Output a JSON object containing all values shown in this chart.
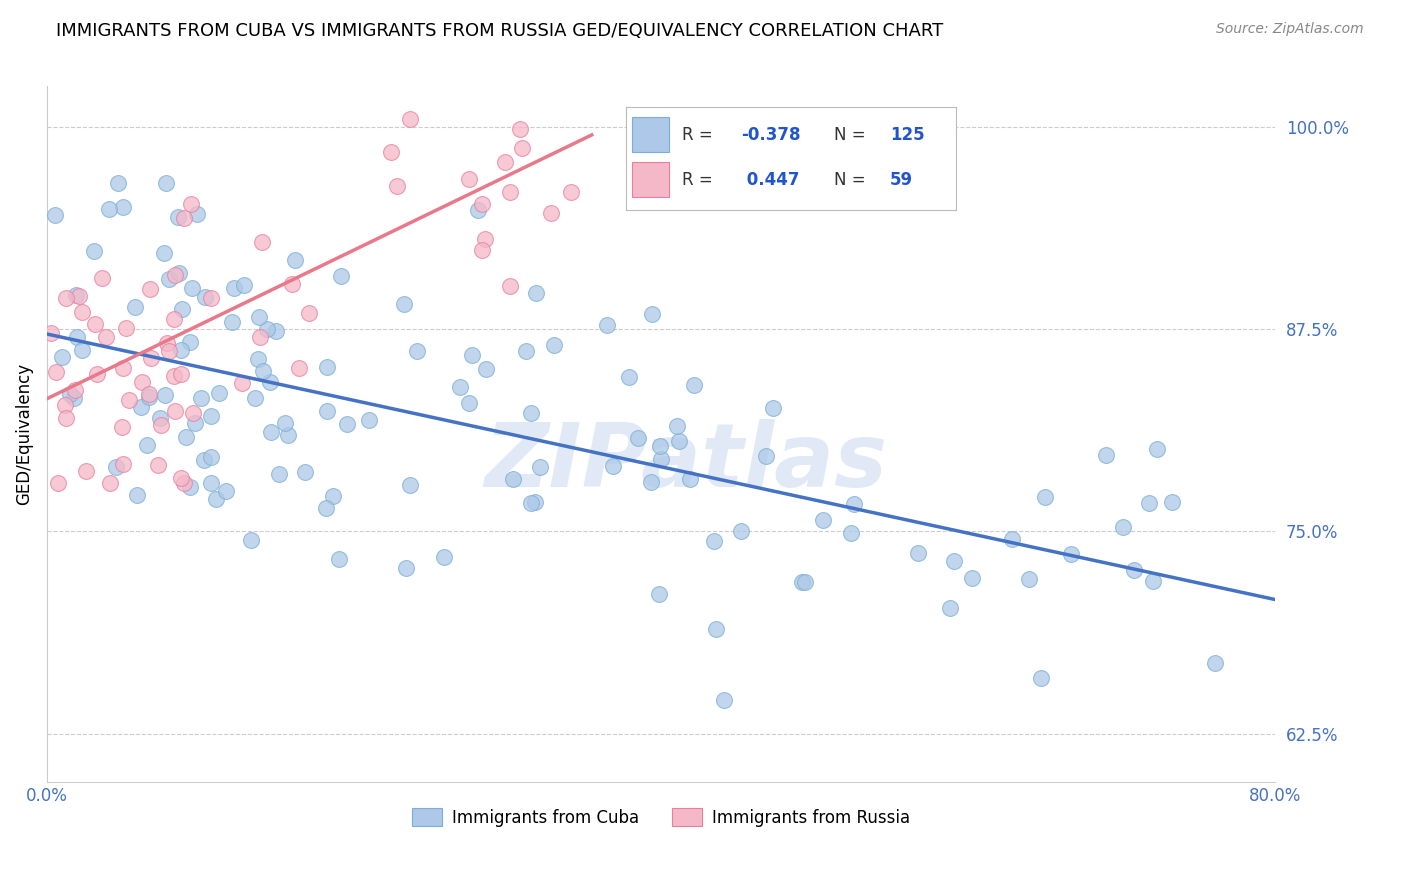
{
  "title": "IMMIGRANTS FROM CUBA VS IMMIGRANTS FROM RUSSIA GED/EQUIVALENCY CORRELATION CHART",
  "source": "Source: ZipAtlas.com",
  "ylabel": "GED/Equivalency",
  "xlim": [
    0.0,
    0.8
  ],
  "ylim": [
    0.595,
    1.025
  ],
  "yticks": [
    0.625,
    0.75,
    0.875,
    1.0
  ],
  "ytick_labels": [
    "62.5%",
    "75.0%",
    "87.5%",
    "100.0%"
  ],
  "xtick_positions": [
    0.0,
    0.2,
    0.4,
    0.6,
    0.8
  ],
  "xtick_labels": [
    "0.0%",
    "",
    "",
    "",
    "80.0%"
  ],
  "cuba_color": "#adc8e8",
  "cuba_edge": "#7aafd4",
  "russia_color": "#f4b8c8",
  "russia_edge": "#e87fa0",
  "cuba_line_color": "#4472c4",
  "russia_line_color": "#e8788a",
  "legend_text_color": "#2255cc",
  "background_color": "#ffffff",
  "grid_color": "#cccccc",
  "title_fontsize": 13,
  "watermark": "ZIPatlas",
  "watermark_color": "#c8d8ed",
  "cuba_line_x0": 0.0,
  "cuba_line_x1": 0.8,
  "cuba_line_y0": 0.872,
  "cuba_line_y1": 0.708,
  "russia_line_x0": 0.0,
  "russia_line_x1": 0.355,
  "russia_line_y0": 0.832,
  "russia_line_y1": 0.995
}
